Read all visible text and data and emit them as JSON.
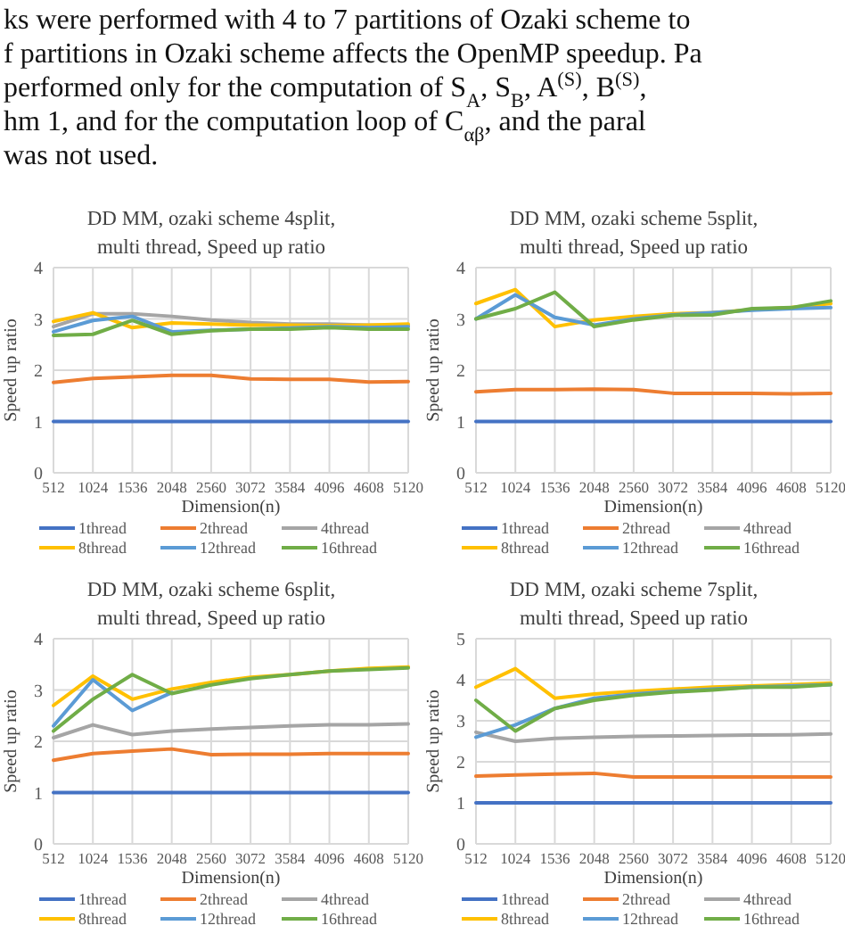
{
  "chart_data": [
    {
      "type": "line",
      "title": "DD MM, ozaki scheme 4split, multi thread, Speed up ratio",
      "xlabel": "Dimension(n)",
      "ylabel": "Speed up ratio",
      "ylim": [
        0,
        4
      ],
      "yticks": [
        0,
        1,
        2,
        3,
        4
      ],
      "grid": true,
      "legend": "bottom",
      "annotations": [
        "ks were performed with 4 to 7 partitions of Ozaki scheme to",
        "f partitions in Ozaki scheme affects the OpenMP speedup. Pa",
        "performed only for the computation of S$_{A}$, S$_{B}$, A$^{(S)}$, B$^{(S)}$,",
        "hm 1, and for the computation loop of C$_{αβ}$, and the paral",
        "was not used."
      ],
      "categories": [
        "512",
        "1024",
        "1536",
        "2048",
        "2560",
        "3072",
        "3584",
        "4096",
        "4608",
        "5120"
      ],
      "series": [
        {
          "name": "1thread",
          "color": "#4472c4",
          "values": [
            1,
            1,
            1,
            1,
            1,
            1,
            1,
            1,
            1,
            1
          ]
        },
        {
          "name": "2thread",
          "color": "#ed7d31",
          "values": [
            1.76,
            1.84,
            1.87,
            1.9,
            1.9,
            1.83,
            1.82,
            1.82,
            1.77,
            1.78
          ]
        },
        {
          "name": "4thread",
          "color": "#a5a5a5",
          "values": [
            2.85,
            3.1,
            3.1,
            3.05,
            2.98,
            2.93,
            2.9,
            2.9,
            2.88,
            2.88
          ]
        },
        {
          "name": "8thread",
          "color": "#ffc000",
          "values": [
            2.95,
            3.12,
            2.83,
            2.92,
            2.9,
            2.88,
            2.88,
            2.87,
            2.88,
            2.9
          ]
        },
        {
          "name": "12thread",
          "color": "#5b9bd5",
          "values": [
            2.75,
            2.97,
            3.05,
            2.75,
            2.78,
            2.8,
            2.82,
            2.85,
            2.83,
            2.85
          ]
        },
        {
          "name": "16thread",
          "color": "#70ad47",
          "values": [
            2.68,
            2.7,
            2.97,
            2.7,
            2.77,
            2.8,
            2.8,
            2.83,
            2.8,
            2.8
          ]
        }
      ]
    },
    {
      "type": "line",
      "title": "DD MM, ozaki scheme 5split, multi thread, Speed up ratio",
      "xlabel": "Dimension(n)",
      "ylabel": "Speed up ratio",
      "ylim": [
        0,
        4
      ],
      "yticks": [
        0,
        1,
        2,
        3,
        4
      ],
      "grid": true,
      "legend": "bottom",
      "categories": [
        "512",
        "1024",
        "1536",
        "2048",
        "2560",
        "3072",
        "3584",
        "4096",
        "4608",
        "5120"
      ],
      "series": [
        {
          "name": "1thread",
          "color": "#4472c4",
          "values": [
            1,
            1,
            1,
            1,
            1,
            1,
            1,
            1,
            1,
            1
          ]
        },
        {
          "name": "2thread",
          "color": "#ed7d31",
          "values": [
            1.58,
            1.62,
            1.62,
            1.63,
            1.62,
            1.55,
            1.55,
            1.55,
            1.54,
            1.55
          ]
        },
        {
          "name": "4thread",
          "color": "#a5a5a5",
          "values": [
            null,
            null,
            null,
            null,
            null,
            null,
            null,
            null,
            null,
            null
          ]
        },
        {
          "name": "8thread",
          "color": "#ffc000",
          "values": [
            3.3,
            3.57,
            2.85,
            2.98,
            3.05,
            3.1,
            3.12,
            3.18,
            3.22,
            3.3
          ]
        },
        {
          "name": "12thread",
          "color": "#5b9bd5",
          "values": [
            3.0,
            3.47,
            3.03,
            2.88,
            3.0,
            3.08,
            3.12,
            3.17,
            3.2,
            3.22
          ]
        },
        {
          "name": "16thread",
          "color": "#70ad47",
          "values": [
            3.0,
            3.2,
            3.52,
            2.85,
            2.98,
            3.07,
            3.08,
            3.2,
            3.22,
            3.35
          ]
        }
      ]
    },
    {
      "type": "line",
      "title": "DD MM, ozaki scheme 6split, multi thread, Speed up ratio",
      "xlabel": "Dimension(n)",
      "ylabel": "Speed up ratio",
      "ylim": [
        0,
        4
      ],
      "yticks": [
        0,
        1,
        2,
        3,
        4
      ],
      "grid": true,
      "legend": "bottom",
      "categories": [
        "512",
        "1024",
        "1536",
        "2048",
        "2560",
        "3072",
        "3584",
        "4096",
        "4608",
        "5120"
      ],
      "series": [
        {
          "name": "1thread",
          "color": "#4472c4",
          "values": [
            1,
            1,
            1,
            1,
            1,
            1,
            1,
            1,
            1,
            1
          ]
        },
        {
          "name": "2thread",
          "color": "#ed7d31",
          "values": [
            1.63,
            1.76,
            1.81,
            1.85,
            1.74,
            1.75,
            1.75,
            1.76,
            1.76,
            1.76
          ]
        },
        {
          "name": "4thread",
          "color": "#a5a5a5",
          "values": [
            2.07,
            2.32,
            2.13,
            2.2,
            2.24,
            2.27,
            2.3,
            2.32,
            2.32,
            2.34
          ]
        },
        {
          "name": "8thread",
          "color": "#ffc000",
          "values": [
            2.7,
            3.27,
            2.82,
            3.02,
            3.15,
            3.25,
            3.3,
            3.37,
            3.42,
            3.45
          ]
        },
        {
          "name": "12thread",
          "color": "#5b9bd5",
          "values": [
            2.3,
            3.2,
            2.6,
            2.95,
            null,
            null,
            null,
            null,
            null,
            null
          ]
        },
        {
          "name": "16thread",
          "color": "#70ad47",
          "values": [
            2.2,
            2.82,
            3.3,
            2.93,
            3.1,
            3.22,
            3.3,
            3.37,
            3.4,
            3.43
          ]
        }
      ]
    },
    {
      "type": "line",
      "title": "DD MM, ozaki scheme 7split, multi thread, Speed up ratio",
      "xlabel": "Dimension(n)",
      "ylabel": "Speed up ratio",
      "ylim": [
        0,
        5
      ],
      "yticks": [
        0,
        1,
        2,
        3,
        4,
        5
      ],
      "grid": true,
      "legend": "bottom",
      "categories": [
        "512",
        "1024",
        "1536",
        "2048",
        "2560",
        "3072",
        "3584",
        "4096",
        "4608",
        "5120"
      ],
      "series": [
        {
          "name": "1thread",
          "color": "#4472c4",
          "values": [
            1,
            1,
            1,
            1,
            1,
            1,
            1,
            1,
            1,
            1
          ]
        },
        {
          "name": "2thread",
          "color": "#ed7d31",
          "values": [
            1.65,
            1.68,
            1.7,
            1.72,
            1.63,
            1.63,
            1.63,
            1.63,
            1.63,
            1.63
          ]
        },
        {
          "name": "4thread",
          "color": "#a5a5a5",
          "values": [
            2.72,
            2.5,
            2.57,
            2.6,
            2.62,
            2.63,
            2.64,
            2.65,
            2.66,
            2.68
          ]
        },
        {
          "name": "8thread",
          "color": "#ffc000",
          "values": [
            3.82,
            4.27,
            3.55,
            3.65,
            3.72,
            3.77,
            3.82,
            3.85,
            3.88,
            3.92
          ]
        },
        {
          "name": "12thread",
          "color": "#5b9bd5",
          "values": [
            2.6,
            2.9,
            3.3,
            3.55,
            3.65,
            3.72,
            3.77,
            3.82,
            3.85,
            3.88
          ]
        },
        {
          "name": "16thread",
          "color": "#70ad47",
          "values": [
            3.5,
            2.75,
            3.3,
            3.5,
            3.62,
            3.7,
            3.75,
            3.82,
            3.82,
            3.88
          ]
        }
      ]
    }
  ]
}
